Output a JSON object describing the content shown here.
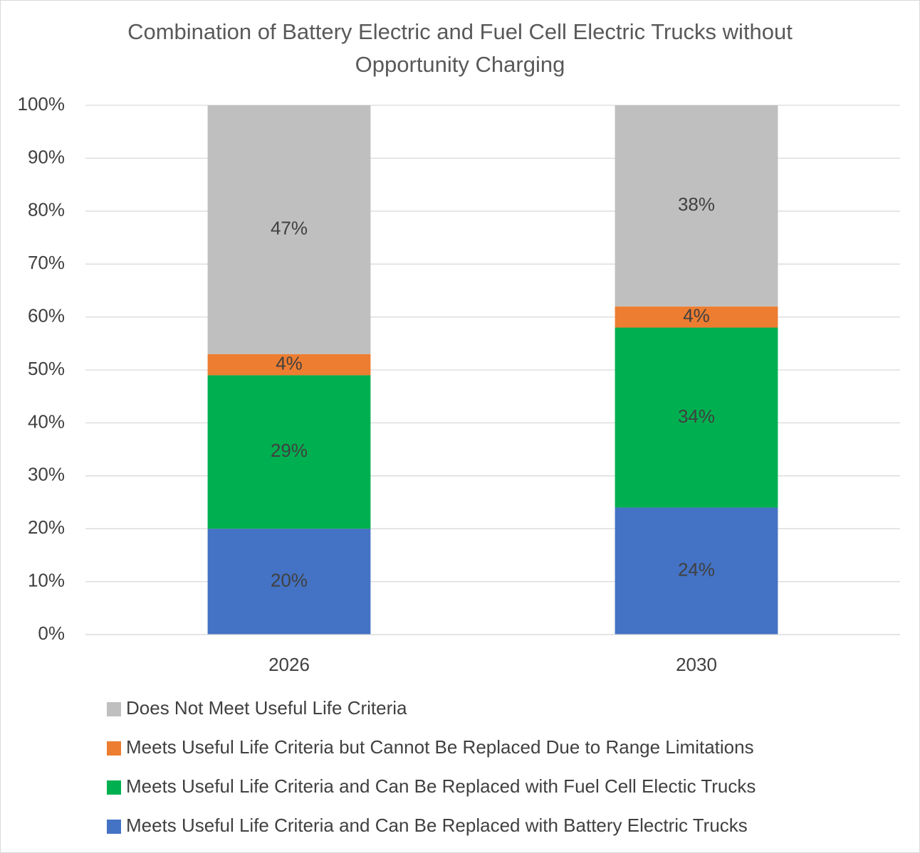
{
  "chart_data": {
    "type": "stacked_bar",
    "title": "Combination of Battery Electric and Fuel Cell Electric Trucks without Opportunity Charging",
    "categories": [
      "2026",
      "2030"
    ],
    "series": [
      {
        "name": "Meets Useful Life Criteria and Can Be Replaced with Battery Electric Trucks",
        "color": "#4472c4",
        "values": [
          20,
          24
        ],
        "value_labels": [
          "20%",
          "24%"
        ]
      },
      {
        "name": "Meets Useful Life Criteria and Can Be Replaced with Fuel Cell Electic Trucks",
        "color": "#00b050",
        "values": [
          29,
          34
        ],
        "value_labels": [
          "29%",
          "34%"
        ]
      },
      {
        "name": "Meets Useful Life Criteria but Cannot Be Replaced Due to Range Limitations",
        "color": "#ed7d31",
        "values": [
          4,
          4
        ],
        "value_labels": [
          "4%",
          "4%"
        ]
      },
      {
        "name": "Does Not Meet Useful Life Criteria",
        "color": "#bfbfbf",
        "values": [
          47,
          38
        ],
        "value_labels": [
          "47%",
          "38%"
        ]
      }
    ],
    "ylim": [
      0,
      100
    ],
    "yticks": [
      {
        "value": 0,
        "label": "0%"
      },
      {
        "value": 10,
        "label": "10%"
      },
      {
        "value": 20,
        "label": "20%"
      },
      {
        "value": 30,
        "label": "30%"
      },
      {
        "value": 40,
        "label": "40%"
      },
      {
        "value": 50,
        "label": "50%"
      },
      {
        "value": 60,
        "label": "60%"
      },
      {
        "value": 70,
        "label": "70%"
      },
      {
        "value": 80,
        "label": "80%"
      },
      {
        "value": 90,
        "label": "90%"
      },
      {
        "value": 100,
        "label": "100%"
      }
    ],
    "grid": true,
    "legend": "bottom"
  }
}
